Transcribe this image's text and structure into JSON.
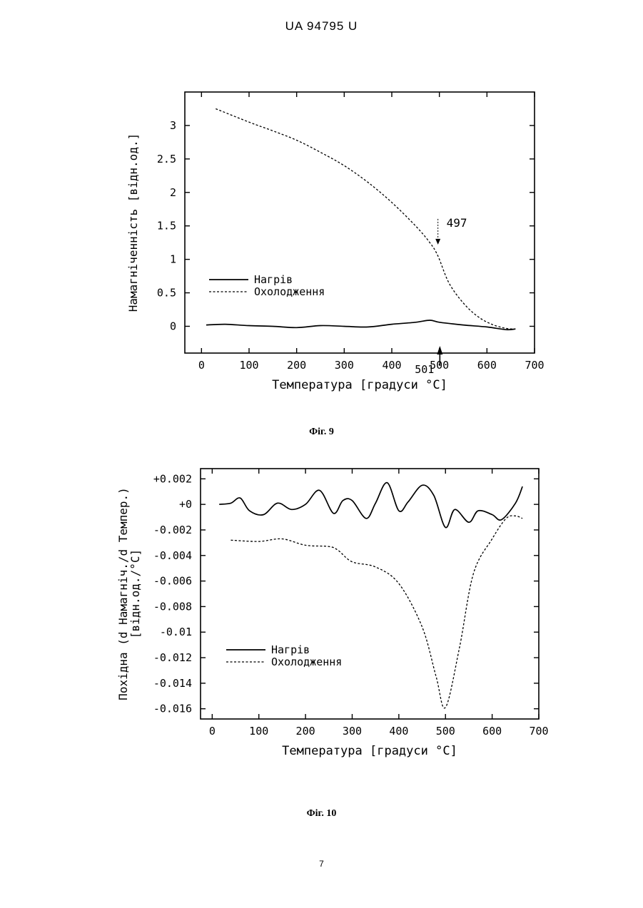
{
  "header": "UA   94795   U",
  "page_number": "7",
  "figures": [
    {
      "caption": "Фіг. 9"
    },
    {
      "caption": "Фіг. 10"
    }
  ],
  "chart_data": [
    {
      "type": "line",
      "xlabel": "Температура [градуси °C]",
      "ylabel": "Намагніченність [відн.од.]",
      "xlim": [
        -35,
        700
      ],
      "ylim": [
        -0.4,
        3.5
      ],
      "xticks": [
        "0",
        "100",
        "200",
        "300",
        "400",
        "500",
        "600",
        "700"
      ],
      "yticks": [
        "0",
        "0.5",
        "1",
        "1.5",
        "2",
        "2.5",
        "3"
      ],
      "legend": "left",
      "annotations": [
        {
          "text": "497",
          "x": 497,
          "y": 1.2
        },
        {
          "text": "501",
          "x": 501,
          "y": -0.3
        }
      ],
      "series": [
        {
          "name": "Нагрів",
          "style": "solid",
          "x": [
            10,
            50,
            100,
            150,
            200,
            250,
            300,
            350,
            400,
            450,
            480,
            500,
            550,
            600,
            640,
            660
          ],
          "y": [
            0.02,
            0.03,
            0.01,
            0.0,
            -0.02,
            0.01,
            0.0,
            -0.01,
            0.03,
            0.06,
            0.09,
            0.06,
            0.02,
            -0.01,
            -0.05,
            -0.04
          ]
        },
        {
          "name": "Охолодження",
          "style": "dashed",
          "x": [
            30,
            100,
            150,
            200,
            250,
            300,
            350,
            400,
            450,
            480,
            497,
            520,
            550,
            580,
            610,
            640,
            660
          ],
          "y": [
            3.25,
            3.05,
            2.92,
            2.78,
            2.6,
            2.4,
            2.15,
            1.85,
            1.5,
            1.25,
            1.05,
            0.65,
            0.35,
            0.15,
            0.03,
            -0.03,
            -0.04
          ]
        }
      ]
    },
    {
      "type": "line",
      "xlabel": "Температура [градуси °C]",
      "ylabel": "Похідна (d Намагніч./d Темпер.) [відн.од./°C]",
      "xlim": [
        -25,
        700
      ],
      "ylim": [
        -0.0168,
        0.0028
      ],
      "xticks": [
        "0",
        "100",
        "200",
        "300",
        "400",
        "500",
        "600",
        "700"
      ],
      "yticks": [
        "+0.002",
        "+0",
        "-0.002",
        "-0.004",
        "-0.006",
        "-0.008",
        "-0.01",
        "-0.012",
        "-0.014",
        "-0.016"
      ],
      "legend": "left",
      "series": [
        {
          "name": "Нагрів",
          "style": "solid",
          "x": [
            15,
            40,
            60,
            80,
            110,
            140,
            170,
            200,
            230,
            260,
            280,
            300,
            330,
            350,
            375,
            400,
            420,
            450,
            475,
            500,
            520,
            550,
            570,
            600,
            620,
            650,
            665
          ],
          "y": [
            0.0,
            0.0001,
            0.0005,
            -0.0005,
            -0.0008,
            0.0001,
            -0.0004,
            0.0,
            0.0011,
            -0.0007,
            0.0003,
            0.0003,
            -0.0011,
            0.0001,
            0.0017,
            -0.0005,
            0.0002,
            0.0015,
            0.0007,
            -0.0018,
            -0.0004,
            -0.0014,
            -0.0005,
            -0.0008,
            -0.0012,
            0.0001,
            0.0014
          ]
        },
        {
          "name": "Охолодження",
          "style": "dashed",
          "x": [
            40,
            100,
            150,
            200,
            250,
            270,
            300,
            350,
            400,
            450,
            480,
            500,
            530,
            560,
            600,
            630,
            650,
            665
          ],
          "y": [
            -0.0028,
            -0.0029,
            -0.0027,
            -0.0032,
            -0.0033,
            -0.0036,
            -0.0045,
            -0.0049,
            -0.0062,
            -0.0096,
            -0.0135,
            -0.0159,
            -0.0112,
            -0.0054,
            -0.0027,
            -0.0011,
            -0.0009,
            -0.0011
          ]
        }
      ]
    }
  ]
}
